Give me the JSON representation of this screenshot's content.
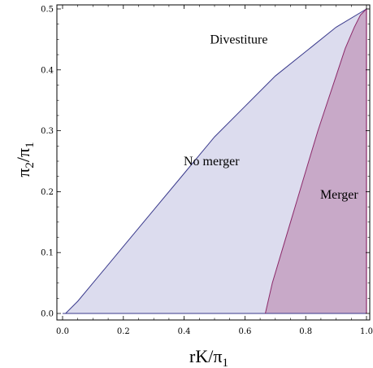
{
  "chart_data": {
    "type": "area",
    "xlabel": "rK/π",
    "xlabel_sub": "1",
    "ylabel": "π",
    "ylabel_sub1": "2",
    "ylabel_mid": "/π",
    "ylabel_sub2": "1",
    "xlim": [
      0,
      1.0
    ],
    "ylim": [
      0,
      0.5
    ],
    "x_ticks": [
      0.0,
      0.2,
      0.4,
      0.6,
      0.8,
      1.0
    ],
    "x_tick_labels": [
      "0.0",
      "0.2",
      "0.4",
      "0.6",
      "0.8",
      "1.0"
    ],
    "y_ticks": [
      0.0,
      0.1,
      0.2,
      0.3,
      0.4,
      0.5
    ],
    "y_tick_labels": [
      "0.0",
      "0.1",
      "0.2",
      "0.3",
      "0.4",
      "0.5"
    ],
    "grid": false,
    "regions": [
      {
        "label": "Divestiture",
        "label_at": [
          0.58,
          0.45
        ],
        "fill": "#ffffff"
      },
      {
        "label": "No merger",
        "label_at": [
          0.49,
          0.25
        ],
        "fill": "#dcdcee",
        "boundary_color": "#3a3a8c",
        "upper_boundary": {
          "x": [
            0.0,
            0.01,
            0.05,
            0.1,
            0.2,
            0.3,
            0.4,
            0.5,
            0.6,
            0.7,
            0.8,
            0.9,
            1.0
          ],
          "y": [
            0.0,
            0.0,
            0.02,
            0.05,
            0.11,
            0.17,
            0.23,
            0.29,
            0.34,
            0.39,
            0.43,
            0.47,
            0.5
          ]
        }
      },
      {
        "label": "Merger",
        "label_at": [
          0.91,
          0.195
        ],
        "fill": "#c8a9c8",
        "boundary_color": "#8c2a6a",
        "left_boundary": {
          "x": [
            0.667,
            0.69,
            0.72,
            0.75,
            0.78,
            0.81,
            0.84,
            0.87,
            0.9,
            0.93,
            0.96,
            0.98,
            1.0
          ],
          "y": [
            0.0,
            0.05,
            0.1,
            0.15,
            0.2,
            0.25,
            0.3,
            0.345,
            0.39,
            0.435,
            0.47,
            0.49,
            0.5
          ]
        }
      }
    ]
  }
}
